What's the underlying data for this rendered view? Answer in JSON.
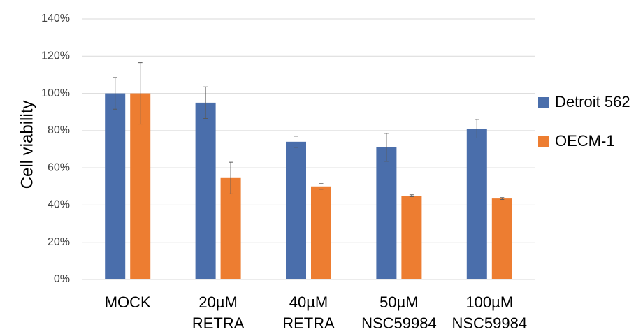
{
  "chart_data": {
    "type": "bar",
    "title": "",
    "xlabel": "",
    "ylabel": "Cell viability",
    "ylim": [
      0,
      140
    ],
    "yticks": [
      0,
      20,
      40,
      60,
      80,
      100,
      120,
      140
    ],
    "ytick_labels": [
      "0%",
      "20%",
      "40%",
      "60%",
      "80%",
      "100%",
      "120%",
      "140%"
    ],
    "categories": [
      [
        "MOCK"
      ],
      [
        "20µM",
        "RETRA"
      ],
      [
        "40µM",
        "RETRA"
      ],
      [
        "50µM",
        "NSC59984"
      ],
      [
        "100µM",
        "NSC59984"
      ]
    ],
    "series": [
      {
        "name": "Detroit 562",
        "color": "#4a6eab",
        "values": [
          100,
          95,
          74,
          71,
          81
        ],
        "errors": [
          8.5,
          8.5,
          3,
          7.5,
          5
        ]
      },
      {
        "name": "OECM-1",
        "color": "#ed7d31",
        "values": [
          100,
          54.5,
          50,
          45,
          43.5
        ],
        "errors": [
          16.5,
          8.5,
          1.5,
          0.5,
          0.5
        ]
      }
    ],
    "grid": true,
    "legend_position": "right"
  }
}
